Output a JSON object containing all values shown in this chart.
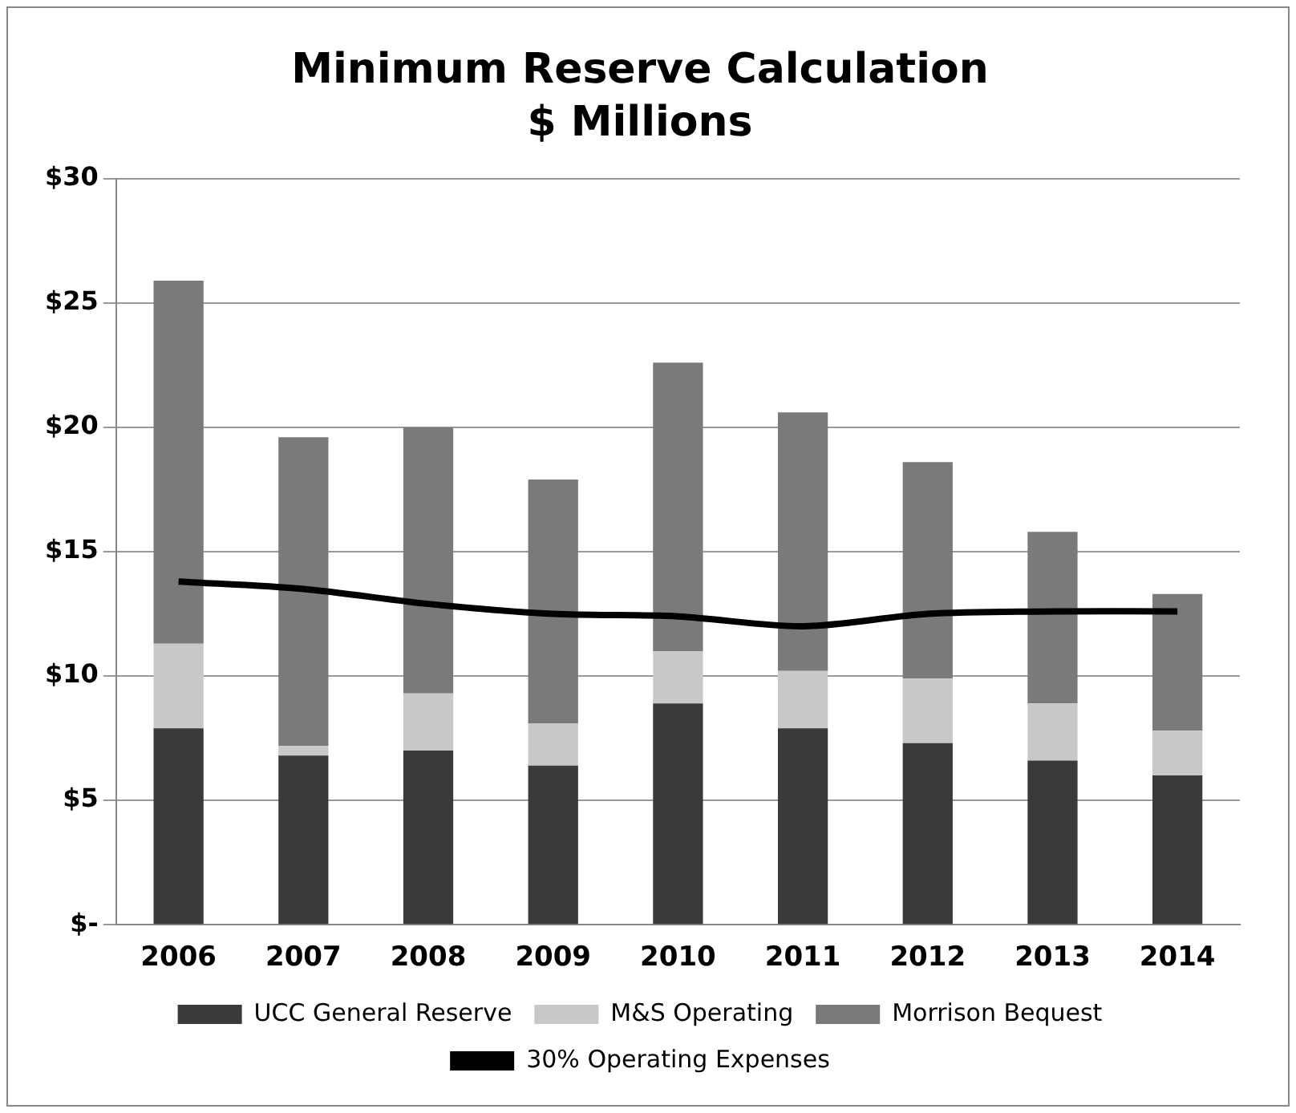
{
  "chart_data": {
    "type": "bar",
    "title": "Minimum Reserve Calculation",
    "subtitle": "$ Millions",
    "stacked": true,
    "grid": "y",
    "legend": "bottom",
    "marker": "none",
    "categories": [
      "2006",
      "2007",
      "2008",
      "2009",
      "2010",
      "2011",
      "2012",
      "2013",
      "2014"
    ],
    "ylim": [
      0,
      30
    ],
    "yticks": [
      {
        "value": 0,
        "label": "$-"
      },
      {
        "value": 5,
        "label": "$5"
      },
      {
        "value": 10,
        "label": "$10"
      },
      {
        "value": 15,
        "label": "$15"
      },
      {
        "value": 20,
        "label": "$20"
      },
      {
        "value": 25,
        "label": "$25"
      },
      {
        "value": 30,
        "label": "$30"
      }
    ],
    "series": [
      {
        "name": "UCC General Reserve",
        "color": "#3a3a3a",
        "values": [
          7.9,
          6.8,
          7.0,
          6.4,
          8.9,
          7.9,
          7.3,
          6.6,
          6.0
        ]
      },
      {
        "name": "M&S Operating",
        "color": "#c8c8c8",
        "values": [
          3.4,
          0.4,
          2.3,
          1.7,
          2.1,
          2.3,
          2.6,
          2.3,
          1.8
        ]
      },
      {
        "name": "Morrison Bequest",
        "color": "#7a7a7a",
        "values": [
          14.6,
          12.4,
          10.7,
          9.8,
          11.6,
          10.4,
          8.7,
          6.9,
          5.5
        ]
      },
      {
        "name": "30% Operating Expenses",
        "type": "line",
        "color": "#000000",
        "values": [
          13.8,
          13.5,
          12.9,
          12.5,
          12.4,
          12.0,
          12.5,
          12.6,
          12.6
        ]
      }
    ]
  }
}
